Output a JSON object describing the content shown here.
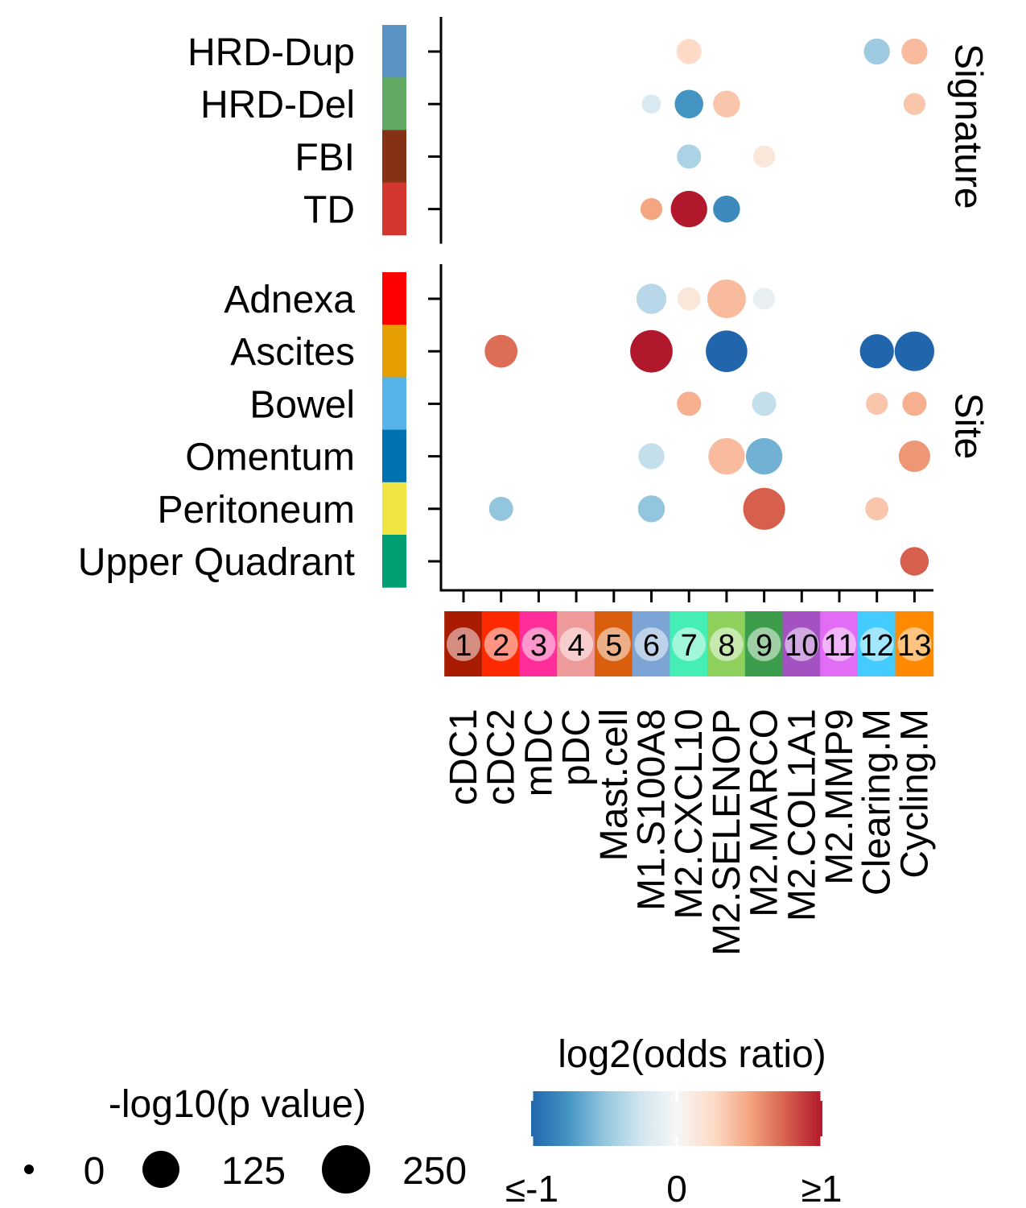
{
  "chart_data": {
    "type": "scatter",
    "title": "",
    "clusters": [
      {
        "id": "1",
        "name": "cDC1",
        "color": "#A81B00"
      },
      {
        "id": "2",
        "name": "cDC2",
        "color": "#FF2A00"
      },
      {
        "id": "3",
        "name": "mDC",
        "color": "#FF2E9A"
      },
      {
        "id": "4",
        "name": "pDC",
        "color": "#EF9A9A"
      },
      {
        "id": "5",
        "name": "Mast.cell",
        "color": "#D95F0E"
      },
      {
        "id": "6",
        "name": "M1.S100A8",
        "color": "#7CA4D4"
      },
      {
        "id": "7",
        "name": "M2.CXCL10",
        "color": "#44EEB5"
      },
      {
        "id": "8",
        "name": "M2.SELENOP",
        "color": "#8ED15C"
      },
      {
        "id": "9",
        "name": "M2.MARCO",
        "color": "#3C9E4A"
      },
      {
        "id": "10",
        "name": "M2.COL1A1",
        "color": "#A452C2"
      },
      {
        "id": "11",
        "name": "M2.MMP9",
        "color": "#E26CF5"
      },
      {
        "id": "12",
        "name": "Clearing.M",
        "color": "#45CCFF"
      },
      {
        "id": "13",
        "name": "Cycling.M",
        "color": "#FF8A00"
      }
    ],
    "panels": [
      {
        "label": "Signature",
        "rows": [
          {
            "name": "HRD-Dup",
            "color": "#5B93C4"
          },
          {
            "name": "HRD-Del",
            "color": "#62A964"
          },
          {
            "name": "FBI",
            "color": "#843115"
          },
          {
            "name": "TD",
            "color": "#D43730"
          }
        ],
        "points": [
          {
            "row": "HRD-Dup",
            "cluster": "7",
            "log2_or": 0.25,
            "neg_log10_p": 40
          },
          {
            "row": "HRD-Dup",
            "cluster": "12",
            "log2_or": -0.45,
            "neg_log10_p": 45
          },
          {
            "row": "HRD-Dup",
            "cluster": "13",
            "log2_or": 0.4,
            "neg_log10_p": 45
          },
          {
            "row": "HRD-Del",
            "cluster": "6",
            "log2_or": -0.2,
            "neg_log10_p": 15
          },
          {
            "row": "HRD-Del",
            "cluster": "7",
            "log2_or": -0.75,
            "neg_log10_p": 60
          },
          {
            "row": "HRD-Del",
            "cluster": "8",
            "log2_or": 0.35,
            "neg_log10_p": 50
          },
          {
            "row": "HRD-Del",
            "cluster": "13",
            "log2_or": 0.35,
            "neg_log10_p": 25
          },
          {
            "row": "FBI",
            "cluster": "7",
            "log2_or": -0.4,
            "neg_log10_p": 35
          },
          {
            "row": "FBI",
            "cluster": "9",
            "log2_or": 0.15,
            "neg_log10_p": 25
          },
          {
            "row": "TD",
            "cluster": "6",
            "log2_or": 0.5,
            "neg_log10_p": 25
          },
          {
            "row": "TD",
            "cluster": "7",
            "log2_or": 1.0,
            "neg_log10_p": 120
          },
          {
            "row": "TD",
            "cluster": "8",
            "log2_or": -0.8,
            "neg_log10_p": 50
          }
        ]
      },
      {
        "label": "Site",
        "rows": [
          {
            "name": "Adnexa",
            "color": "#FF0000"
          },
          {
            "name": "Ascites",
            "color": "#E69F00"
          },
          {
            "name": "Bowel",
            "color": "#56B4E9"
          },
          {
            "name": "Omentum",
            "color": "#0072B2"
          },
          {
            "name": "Peritoneum",
            "color": "#F0E442"
          },
          {
            "name": "Upper Quadrant",
            "color": "#009E73"
          }
        ],
        "points": [
          {
            "row": "Adnexa",
            "cluster": "6",
            "log2_or": -0.35,
            "neg_log10_p": 70
          },
          {
            "row": "Adnexa",
            "cluster": "7",
            "log2_or": 0.15,
            "neg_log10_p": 30
          },
          {
            "row": "Adnexa",
            "cluster": "8",
            "log2_or": 0.4,
            "neg_log10_p": 140
          },
          {
            "row": "Adnexa",
            "cluster": "9",
            "log2_or": -0.1,
            "neg_log10_p": 25
          },
          {
            "row": "Ascites",
            "cluster": "2",
            "log2_or": 0.7,
            "neg_log10_p": 90
          },
          {
            "row": "Ascites",
            "cluster": "6",
            "log2_or": 1.0,
            "neg_log10_p": 180
          },
          {
            "row": "Ascites",
            "cluster": "8",
            "log2_or": -1.0,
            "neg_log10_p": 170
          },
          {
            "row": "Ascites",
            "cluster": "12",
            "log2_or": -1.0,
            "neg_log10_p": 100
          },
          {
            "row": "Ascites",
            "cluster": "13",
            "log2_or": -1.0,
            "neg_log10_p": 150
          },
          {
            "row": "Bowel",
            "cluster": "7",
            "log2_or": 0.45,
            "neg_log10_p": 35
          },
          {
            "row": "Bowel",
            "cluster": "9",
            "log2_or": -0.3,
            "neg_log10_p": 35
          },
          {
            "row": "Bowel",
            "cluster": "12",
            "log2_or": 0.35,
            "neg_log10_p": 25
          },
          {
            "row": "Bowel",
            "cluster": "13",
            "log2_or": 0.45,
            "neg_log10_p": 35
          },
          {
            "row": "Omentum",
            "cluster": "6",
            "log2_or": -0.3,
            "neg_log10_p": 45
          },
          {
            "row": "Omentum",
            "cluster": "8",
            "log2_or": 0.4,
            "neg_log10_p": 120
          },
          {
            "row": "Omentum",
            "cluster": "9",
            "log2_or": -0.6,
            "neg_log10_p": 120
          },
          {
            "row": "Omentum",
            "cluster": "13",
            "log2_or": 0.55,
            "neg_log10_p": 80
          },
          {
            "row": "Peritoneum",
            "cluster": "2",
            "log2_or": -0.5,
            "neg_log10_p": 35
          },
          {
            "row": "Peritoneum",
            "cluster": "6",
            "log2_or": -0.5,
            "neg_log10_p": 50
          },
          {
            "row": "Peritoneum",
            "cluster": "9",
            "log2_or": 0.75,
            "neg_log10_p": 175
          },
          {
            "row": "Peritoneum",
            "cluster": "12",
            "log2_or": 0.35,
            "neg_log10_p": 30
          },
          {
            "row": "Upper Quadrant",
            "cluster": "13",
            "log2_or": 0.75,
            "neg_log10_p": 60
          }
        ]
      }
    ],
    "size_legend": {
      "title": "-log10(p value)",
      "breaks": [
        0,
        125,
        250
      ],
      "labels": [
        "0",
        "125",
        "250"
      ]
    },
    "color_legend": {
      "title": "log2(odds ratio)",
      "range": [
        -1,
        1
      ],
      "labels": [
        "≤-1",
        "0",
        "≥1"
      ],
      "colors": [
        "#2166AC",
        "#4393C3",
        "#92C5DE",
        "#D1E5F0",
        "#F7F7F7",
        "#FDDBC7",
        "#F4A582",
        "#D6604D",
        "#B2182B"
      ]
    }
  }
}
